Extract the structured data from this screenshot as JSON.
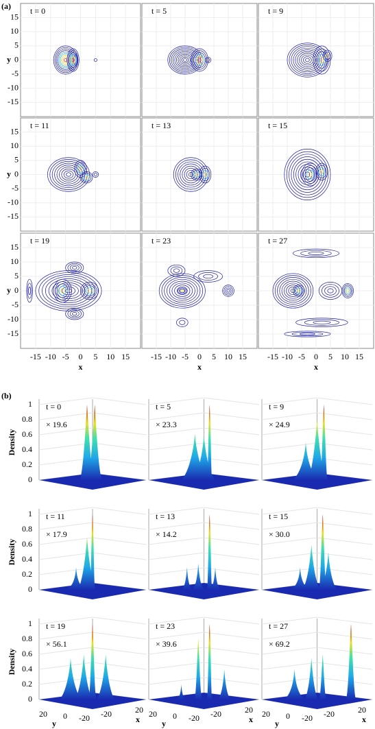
{
  "panel_a": {
    "label": "(a)",
    "xlabel": "x",
    "ylabel": "y",
    "xlim": [
      -20,
      20
    ],
    "ylim": [
      -20,
      20
    ],
    "xticks": [
      -15,
      -10,
      -5,
      0,
      5,
      10,
      15
    ],
    "yticks": [
      15,
      10,
      5,
      0,
      -5,
      -10,
      -15
    ],
    "frames": [
      "t = 0",
      "t = 5",
      "t = 9",
      "t = 11",
      "t = 13",
      "t = 15",
      "t = 19",
      "t = 23",
      "t = 27"
    ]
  },
  "panel_b": {
    "label": "(b)",
    "zlabel": "Density",
    "zlim": [
      0,
      1
    ],
    "zticks": [
      0,
      0.2,
      0.4,
      0.6,
      0.8,
      1
    ],
    "xlabel": "x",
    "ylabel": "y",
    "yticks": [
      20,
      0,
      -20
    ],
    "xticks": [
      -20,
      20
    ],
    "frames": [
      {
        "time": "t = 0",
        "scale": "× 19.6"
      },
      {
        "time": "t = 5",
        "scale": "× 23.3"
      },
      {
        "time": "t = 9",
        "scale": "× 24.9"
      },
      {
        "time": "t = 11",
        "scale": "× 17.9"
      },
      {
        "time": "t = 13",
        "scale": "× 14.2"
      },
      {
        "time": "t = 15",
        "scale": "× 30.0"
      },
      {
        "time": "t = 19",
        "scale": "× 56.1"
      },
      {
        "time": "t = 23",
        "scale": "× 39.6"
      },
      {
        "time": "t = 27",
        "scale": "× 69.2"
      }
    ]
  }
}
